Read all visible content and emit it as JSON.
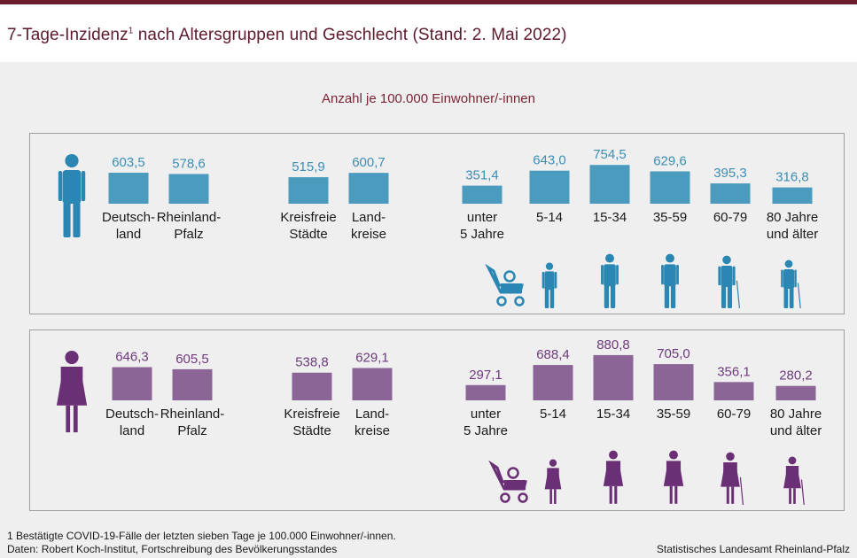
{
  "title": {
    "text": "7-Tage-Inzidenz",
    "sup": "1",
    "rest": " nach Altersgruppen und Geschlecht (Stand: 2. Mai 2022)"
  },
  "subtitle": "Anzahl je 100.000 Einwohner/-innen",
  "colors": {
    "top_bar": "#6b1d2e",
    "title": "#5e1a2b",
    "male": "#4a9bbd",
    "male_label": "#3d8eb5",
    "male_icon": "#2a86b2",
    "female": "#8c6597",
    "female_label": "#6e3a7d",
    "female_icon": "#6a2f74"
  },
  "chart_data": [
    {
      "type": "bar",
      "name": "male",
      "categories": [
        "Deutsch-\nland",
        "Rheinland-\nPfalz",
        "Kreisfreie\nStädte",
        "Land-\nkreise",
        "unter\n5 Jahre",
        "5-14",
        "15-34",
        "35-59",
        "60-79",
        "80 Jahre\nund älter"
      ],
      "values": [
        603.5,
        578.6,
        515.9,
        600.7,
        351.4,
        643.0,
        754.5,
        629.6,
        395.3,
        316.8
      ],
      "value_labels": [
        "603,5",
        "578,6",
        "515,9",
        "600,7",
        "351,4",
        "643,0",
        "754,5",
        "629,6",
        "395,3",
        "316,8"
      ],
      "icons": [
        "male-figure-icon",
        "stroller-baby-icon",
        "boy-icon",
        "man-icon",
        "man-suit-icon",
        "elderly-man-cane-icon",
        "elderly-man-cane-icon"
      ]
    },
    {
      "type": "bar",
      "name": "female",
      "categories": [
        "Deutsch-\nland",
        "Rheinland-\nPfalz",
        "Kreisfreie\nStädte",
        "Land-\nkreise",
        "unter\n5 Jahre",
        "5-14",
        "15-34",
        "35-59",
        "60-79",
        "80 Jahre\nund älter"
      ],
      "values": [
        646.3,
        605.5,
        538.8,
        629.1,
        297.1,
        688.4,
        880.8,
        705.0,
        356.1,
        280.2
      ],
      "value_labels": [
        "646,3",
        "605,5",
        "538,8",
        "629,1",
        "297,1",
        "688,4",
        "880,8",
        "705,0",
        "356,1",
        "280,2"
      ],
      "icons": [
        "female-figure-icon",
        "stroller-baby-icon",
        "girl-icon",
        "woman-icon",
        "woman-dress-icon",
        "elderly-woman-cane-icon",
        "elderly-woman-cane-icon"
      ]
    }
  ],
  "footnote": {
    "line1": "1 Bestätigte COVID-19-Fälle  der letzten sieben Tage  je 100.000  Einwohner/-innen.",
    "line2": "Daten: Robert  Koch-Institut, Fortschreibung  des Bevölkerungsstandes"
  },
  "source": "Statistisches Landesamt Rheinland-Pfalz"
}
